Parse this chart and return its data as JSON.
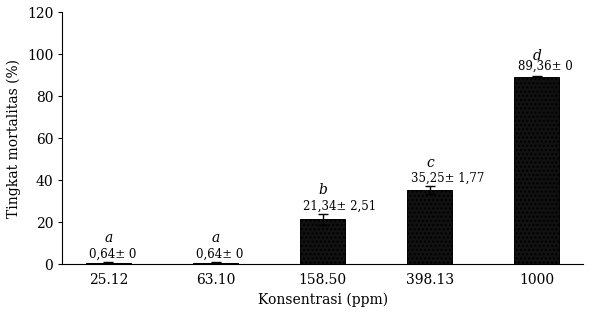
{
  "categories": [
    "25.12",
    "63.10",
    "158.50",
    "398.13",
    "1000"
  ],
  "values": [
    0.64,
    0.64,
    21.34,
    35.25,
    89.36
  ],
  "errors": [
    0,
    0,
    2.51,
    1.77,
    0
  ],
  "errors_display": [
    0.3,
    0.3,
    2.51,
    1.77,
    0.3
  ],
  "letters": [
    "a",
    "a",
    "b",
    "c",
    "d"
  ],
  "value_labels": [
    "0,64± 0",
    "0,64± 0",
    "21,34± 2,51",
    "35,25± 1,77",
    "89,36± 0"
  ],
  "ylabel": "Tingkat mortalitas (%)",
  "xlabel": "Konsentrasi (ppm)",
  "ylim": [
    0,
    120
  ],
  "yticks": [
    0,
    20,
    40,
    60,
    80,
    100,
    120
  ],
  "bar_color": "#111111",
  "hatch": "....",
  "background_color": "#ffffff",
  "letter_fontsize": 10,
  "label_fontsize": 8.5,
  "axis_fontsize": 10,
  "tick_fontsize": 10
}
